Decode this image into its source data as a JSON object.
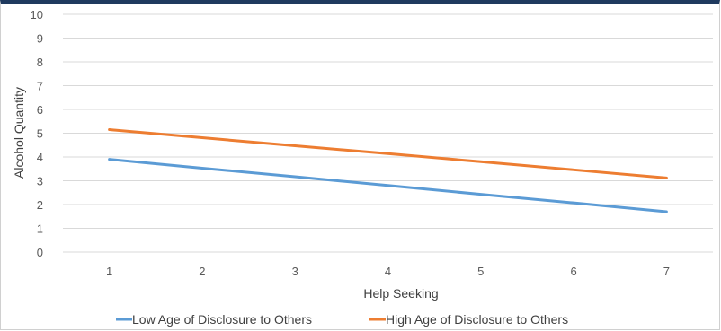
{
  "chart_data": {
    "type": "line",
    "title": "",
    "xlabel": "Help Seeking",
    "ylabel": "Alcohol Quantity",
    "x": [
      1,
      2,
      3,
      4,
      5,
      6,
      7
    ],
    "x_tick_labels": [
      "1",
      "2",
      "3",
      "4",
      "5",
      "6",
      "7"
    ],
    "ylim": [
      0,
      10
    ],
    "y_tick_labels": [
      "0",
      "1",
      "2",
      "3",
      "4",
      "5",
      "6",
      "7",
      "8",
      "9",
      "10"
    ],
    "grid": true,
    "legend_position": "bottom",
    "series": [
      {
        "name": "Low Age of Disclosure to Others",
        "color": "#5b9bd5",
        "values": [
          3.9,
          3.53,
          3.17,
          2.8,
          2.43,
          2.07,
          1.7
        ]
      },
      {
        "name": "High Age of Disclosure to Others",
        "color": "#ed7d31",
        "values": [
          5.15,
          4.81,
          4.47,
          4.14,
          3.8,
          3.46,
          3.12
        ]
      }
    ]
  }
}
